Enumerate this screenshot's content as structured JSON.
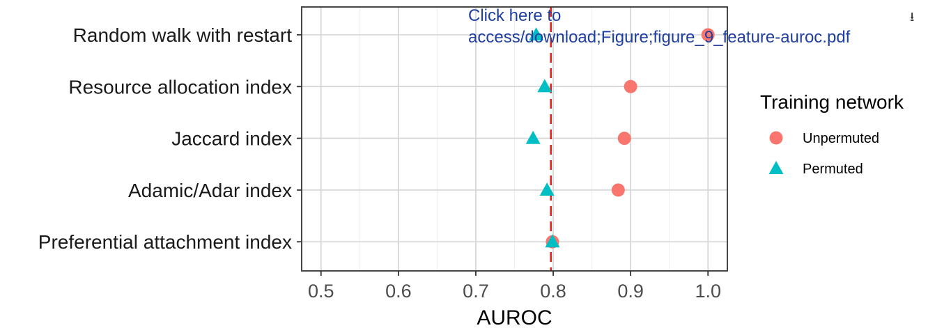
{
  "chart_data": {
    "type": "scatter",
    "xlabel": "AUROC",
    "ylabel": "",
    "xlim": [
      0.475,
      1.025
    ],
    "x_ticks": [
      "0.5",
      "0.6",
      "0.7",
      "0.8",
      "0.9",
      "1.0"
    ],
    "x_tick_values": [
      0.5,
      0.6,
      0.7,
      0.8,
      0.9,
      1.0
    ],
    "categories": [
      "Random walk with restart",
      "Resource allocation index",
      "Jaccard index",
      "Adamic/Adar index",
      "Preferential attachment index"
    ],
    "series": [
      {
        "name": "Unpermuted",
        "shape": "circle",
        "color": "#F8766D",
        "values": [
          1.0,
          0.9,
          0.892,
          0.884,
          0.799
        ]
      },
      {
        "name": "Permuted",
        "shape": "triangle",
        "color": "#00BFC4",
        "values": [
          0.778,
          0.789,
          0.774,
          0.792,
          0.799
        ]
      }
    ],
    "reference_line": {
      "x": 0.797,
      "style": "dashed",
      "color": "#E8201E"
    },
    "grid": true,
    "legend": {
      "title": "Training network",
      "position": "right"
    }
  },
  "overlay": {
    "link_line1": "Click here to",
    "link_line2": "access/download;Figure;figure_9_feature-auroc.pdf",
    "download_icon": "download-icon",
    "download_glyph": "⭳"
  }
}
